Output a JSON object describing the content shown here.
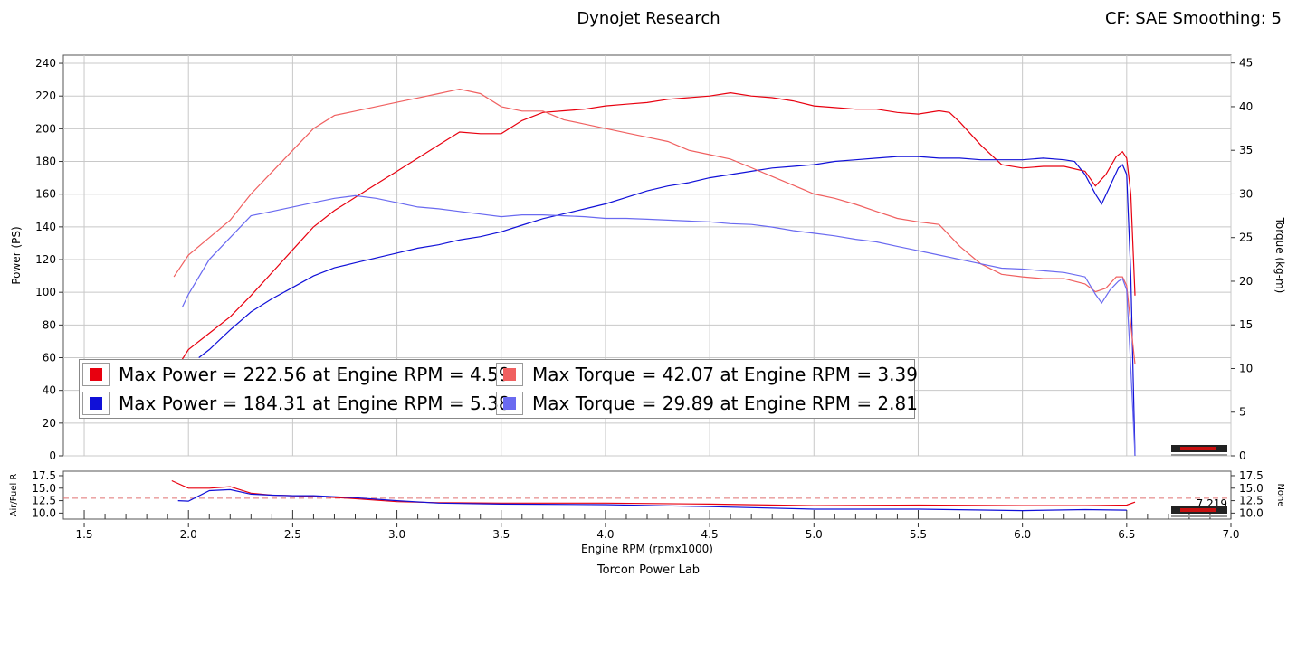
{
  "title": "Dynojet Research",
  "correction": "CF: SAE Smoothing: 5",
  "footer": "Torcon Power Lab",
  "colors": {
    "run1_power": "#e8000f",
    "run1_torque": "#f06060",
    "run2_power": "#1010d8",
    "run2_torque": "#6a6af0",
    "grid": "#c8c8c8"
  },
  "legend": [
    {
      "color": "#e8000f",
      "text": "Max Power = 222.56 at Engine RPM = 4.59"
    },
    {
      "color": "#f06060",
      "text": "Max Torque = 42.07 at Engine RPM = 3.39"
    },
    {
      "color": "#1010d8",
      "text": "Max Power = 184.31 at Engine RPM = 5.38"
    },
    {
      "color": "#6a6af0",
      "text": "Max Torque = 29.89 at Engine RPM = 2.81"
    }
  ],
  "chart_data": [
    {
      "type": "line",
      "xlabel": "",
      "ylabel": "Power (PS)",
      "y2label": "Torque (kg-m)",
      "xlim": [
        1.4,
        7.0
      ],
      "ylim": [
        0,
        245
      ],
      "y2lim": [
        0,
        45.9
      ],
      "yticks": [
        0,
        20,
        40,
        60,
        80,
        100,
        120,
        140,
        160,
        180,
        200,
        220,
        240
      ],
      "y2ticks": [
        0,
        5,
        10,
        15,
        20,
        25,
        30,
        35,
        40,
        45
      ],
      "grid": true,
      "series": [
        {
          "name": "Max Power = 222.56 at Engine RPM = 4.59",
          "axis": "left",
          "color": "#e8000f",
          "x": [
            1.95,
            2.0,
            2.1,
            2.2,
            2.3,
            2.4,
            2.5,
            2.6,
            2.7,
            2.8,
            2.9,
            3.0,
            3.1,
            3.2,
            3.3,
            3.4,
            3.5,
            3.6,
            3.7,
            3.8,
            3.9,
            4.0,
            4.1,
            4.2,
            4.3,
            4.4,
            4.5,
            4.6,
            4.7,
            4.8,
            4.9,
            5.0,
            5.1,
            5.2,
            5.3,
            5.4,
            5.5,
            5.6,
            5.65,
            5.7,
            5.8,
            5.9,
            6.0,
            6.1,
            6.2,
            6.3,
            6.35,
            6.4,
            6.45,
            6.48,
            6.5,
            6.52,
            6.54
          ],
          "y": [
            55,
            65,
            75,
            85,
            98,
            112,
            126,
            140,
            150,
            158,
            166,
            174,
            182,
            190,
            198,
            197,
            197,
            205,
            210,
            211,
            212,
            214,
            215,
            216,
            218,
            219,
            220,
            222,
            220,
            219,
            217,
            214,
            213,
            212,
            212,
            210,
            209,
            211,
            210,
            204,
            190,
            178,
            176,
            177,
            177,
            174,
            165,
            172,
            183,
            186,
            182,
            160,
            98
          ]
        },
        {
          "name": "Max Power = 184.31 at Engine RPM = 5.38",
          "axis": "left",
          "color": "#1010d8",
          "x": [
            2.05,
            2.1,
            2.2,
            2.3,
            2.4,
            2.5,
            2.6,
            2.7,
            2.8,
            2.9,
            3.0,
            3.1,
            3.2,
            3.3,
            3.4,
            3.5,
            3.6,
            3.7,
            3.8,
            3.9,
            4.0,
            4.1,
            4.2,
            4.3,
            4.4,
            4.5,
            4.6,
            4.7,
            4.8,
            4.9,
            5.0,
            5.1,
            5.2,
            5.3,
            5.4,
            5.5,
            5.6,
            5.7,
            5.8,
            5.9,
            6.0,
            6.1,
            6.2,
            6.25,
            6.3,
            6.35,
            6.38,
            6.42,
            6.46,
            6.48,
            6.5,
            6.52,
            6.54
          ],
          "y": [
            60,
            65,
            77,
            88,
            96,
            103,
            110,
            115,
            118,
            121,
            124,
            127,
            129,
            132,
            134,
            137,
            141,
            145,
            148,
            151,
            154,
            158,
            162,
            165,
            167,
            170,
            172,
            174,
            176,
            177,
            178,
            180,
            181,
            182,
            183,
            183,
            182,
            182,
            181,
            181,
            181,
            182,
            181,
            180,
            172,
            160,
            154,
            165,
            176,
            178,
            172,
            110,
            0
          ]
        },
        {
          "name": "Max Torque = 42.07 at Engine RPM = 3.39",
          "axis": "right",
          "color": "#f06060",
          "x": [
            1.93,
            2.0,
            2.1,
            2.2,
            2.3,
            2.4,
            2.5,
            2.6,
            2.7,
            2.8,
            2.9,
            3.0,
            3.1,
            3.2,
            3.3,
            3.4,
            3.5,
            3.6,
            3.7,
            3.8,
            3.9,
            4.0,
            4.1,
            4.2,
            4.3,
            4.4,
            4.5,
            4.6,
            4.7,
            4.8,
            4.9,
            5.0,
            5.1,
            5.2,
            5.3,
            5.4,
            5.5,
            5.6,
            5.7,
            5.8,
            5.9,
            6.0,
            6.1,
            6.2,
            6.3,
            6.35,
            6.4,
            6.45,
            6.48,
            6.5,
            6.52,
            6.54
          ],
          "y": [
            20.5,
            23.0,
            25.0,
            27.0,
            30.0,
            32.5,
            35.0,
            37.5,
            39.0,
            39.5,
            40.0,
            40.5,
            41.0,
            41.5,
            42.0,
            41.5,
            40.0,
            39.5,
            39.5,
            38.5,
            38.0,
            37.5,
            37.0,
            36.5,
            36.0,
            35.0,
            34.5,
            34.0,
            33.0,
            32.0,
            31.0,
            30.0,
            29.5,
            28.8,
            28.0,
            27.2,
            26.8,
            26.5,
            24.0,
            22.0,
            20.8,
            20.5,
            20.3,
            20.3,
            19.7,
            18.8,
            19.2,
            20.5,
            20.5,
            19.5,
            15.0,
            10.5
          ]
        },
        {
          "name": "Max Torque = 29.89 at Engine RPM = 2.81",
          "axis": "right",
          "color": "#6a6af0",
          "x": [
            1.97,
            2.0,
            2.1,
            2.2,
            2.3,
            2.4,
            2.5,
            2.6,
            2.7,
            2.8,
            2.9,
            3.0,
            3.1,
            3.2,
            3.3,
            3.4,
            3.5,
            3.6,
            3.7,
            3.8,
            3.9,
            4.0,
            4.1,
            4.2,
            4.3,
            4.4,
            4.5,
            4.6,
            4.7,
            4.8,
            4.9,
            5.0,
            5.1,
            5.2,
            5.3,
            5.4,
            5.5,
            5.6,
            5.7,
            5.8,
            5.9,
            6.0,
            6.1,
            6.2,
            6.3,
            6.35,
            6.38,
            6.42,
            6.46,
            6.48,
            6.5,
            6.52,
            6.54
          ],
          "y": [
            17.0,
            18.5,
            22.5,
            25.0,
            27.5,
            28.0,
            28.5,
            29.0,
            29.5,
            29.8,
            29.5,
            29.0,
            28.5,
            28.3,
            28.0,
            27.7,
            27.4,
            27.6,
            27.6,
            27.5,
            27.4,
            27.2,
            27.2,
            27.1,
            27.0,
            26.9,
            26.8,
            26.6,
            26.5,
            26.2,
            25.8,
            25.5,
            25.2,
            24.8,
            24.5,
            24.0,
            23.5,
            23.0,
            22.5,
            22.0,
            21.5,
            21.4,
            21.2,
            21.0,
            20.5,
            18.5,
            17.5,
            19.0,
            20.0,
            20.3,
            19.0,
            10.0,
            0
          ]
        }
      ]
    },
    {
      "type": "line",
      "xlabel": "Engine RPM (rpmx1000)",
      "ylabel": "Air/Fuel R",
      "y2label": "None",
      "xlim": [
        1.4,
        7.0
      ],
      "xticks": [
        1.5,
        2.0,
        2.5,
        3.0,
        3.5,
        4.0,
        4.5,
        5.0,
        5.5,
        6.0,
        6.5,
        7.0
      ],
      "ylim": [
        8.8,
        18.4
      ],
      "yticks": [
        10.0,
        12.5,
        15.0,
        17.5
      ],
      "y2ticks": [
        10.0,
        12.5,
        15.0,
        17.5
      ],
      "reference_line": 13.0,
      "annotation": "7.219",
      "series": [
        {
          "name": "",
          "color": "#e8000f",
          "x": [
            1.92,
            2.0,
            2.1,
            2.2,
            2.3,
            2.4,
            2.5,
            2.6,
            2.8,
            3.0,
            3.2,
            3.5,
            4.0,
            4.5,
            5.0,
            5.5,
            6.0,
            6.3,
            6.5,
            6.54
          ],
          "y": [
            16.5,
            15.0,
            15.0,
            15.3,
            14.0,
            13.6,
            13.5,
            13.4,
            12.9,
            12.3,
            12.1,
            12.0,
            12.0,
            11.8,
            11.5,
            11.6,
            11.5,
            11.5,
            11.6,
            12.2
          ]
        },
        {
          "name": "",
          "color": "#1010d8",
          "x": [
            1.95,
            2.0,
            2.1,
            2.2,
            2.3,
            2.4,
            2.5,
            2.6,
            2.8,
            3.0,
            3.2,
            3.5,
            4.0,
            4.5,
            5.0,
            5.5,
            6.0,
            6.3,
            6.5
          ],
          "y": [
            12.5,
            12.4,
            14.5,
            14.7,
            13.8,
            13.6,
            13.5,
            13.5,
            13.1,
            12.5,
            12.0,
            11.8,
            11.7,
            11.3,
            10.8,
            10.8,
            10.5,
            10.7,
            10.6
          ]
        }
      ]
    }
  ]
}
